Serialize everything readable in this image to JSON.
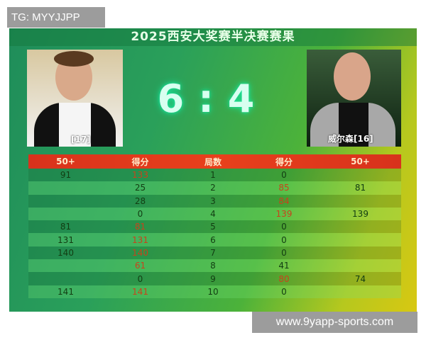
{
  "watermark_top": "TG: MYYJJPP",
  "watermark_bottom": "www.9yapp-sports.com",
  "title": "2025西安大奖赛半决赛赛果",
  "score": {
    "left": "6",
    "sep": ":",
    "right": "4"
  },
  "players": {
    "left": "[17]",
    "right": "威尔森[16]"
  },
  "table": {
    "headers": [
      "50+",
      "得分",
      "局数",
      "得分",
      "50+"
    ],
    "rows": [
      {
        "l50": "91",
        "ls": "133",
        "f": "1",
        "rs": "0",
        "r50": "",
        "win": "left"
      },
      {
        "l50": "",
        "ls": "25",
        "f": "2",
        "rs": "85",
        "r50": "81",
        "win": "right"
      },
      {
        "l50": "",
        "ls": "28",
        "f": "3",
        "rs": "84",
        "r50": "",
        "win": "right"
      },
      {
        "l50": "",
        "ls": "0",
        "f": "4",
        "rs": "139",
        "r50": "139",
        "win": "right"
      },
      {
        "l50": "81",
        "ls": "81",
        "f": "5",
        "rs": "0",
        "r50": "",
        "win": "left"
      },
      {
        "l50": "131",
        "ls": "131",
        "f": "6",
        "rs": "0",
        "r50": "",
        "win": "left"
      },
      {
        "l50": "140",
        "ls": "140",
        "f": "7",
        "rs": "0",
        "r50": "",
        "win": "left"
      },
      {
        "l50": "",
        "ls": "61",
        "f": "8",
        "rs": "41",
        "r50": "",
        "win": "left"
      },
      {
        "l50": "",
        "ls": "0",
        "f": "9",
        "rs": "80",
        "r50": "74",
        "win": "right"
      },
      {
        "l50": "141",
        "ls": "141",
        "f": "10",
        "rs": "0",
        "r50": "",
        "win": "left"
      }
    ]
  },
  "colors": {
    "winner_score": "#c8431c",
    "header_bg": "#e8401c",
    "glow": "#19e39a"
  }
}
